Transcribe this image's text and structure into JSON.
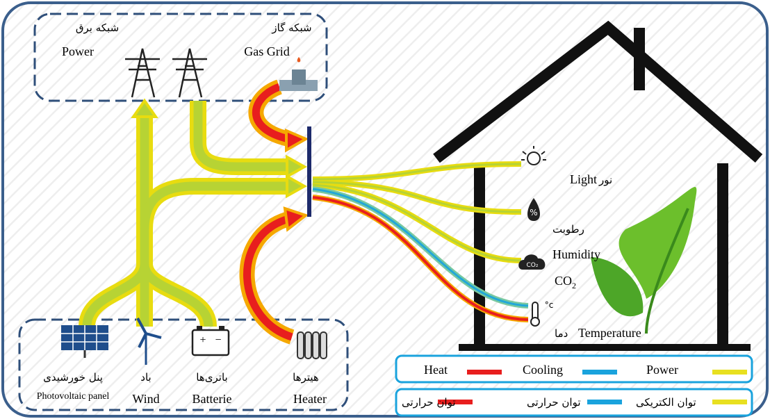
{
  "grid_group": {
    "power_fa": "شبکه برق",
    "power_en": "Power",
    "gas_fa": "شبکه گاز",
    "gas_en": "Gas Grid"
  },
  "sensors": {
    "light_en": "Light",
    "light_fa": "نور",
    "humidity_fa": "رطوبت",
    "humidity_en": "Humidity",
    "co2_main": "CO",
    "co2_sub": "2",
    "temp_fa": "دما",
    "temp_en": "Temperature"
  },
  "sources": {
    "pv_fa": "پنل خورشیدی",
    "pv_en": "Photovoltaic panel",
    "wind_fa": "باد",
    "wind_en": "Wind",
    "battery_fa": "باتری‌ها",
    "battery_en": "Batterie",
    "heater_fa": "هیترها",
    "heater_en": "Heater"
  },
  "icons": {
    "humidity": "%",
    "co2": "CO₂",
    "thermo": "°c",
    "battery_plus": "+",
    "battery_minus": "−"
  },
  "legend_en": [
    "Heat",
    "Cooling",
    "Power"
  ],
  "legend_fa": [
    "توان حرارتی",
    "توان حرارتی",
    "توان الکتریکی"
  ]
}
